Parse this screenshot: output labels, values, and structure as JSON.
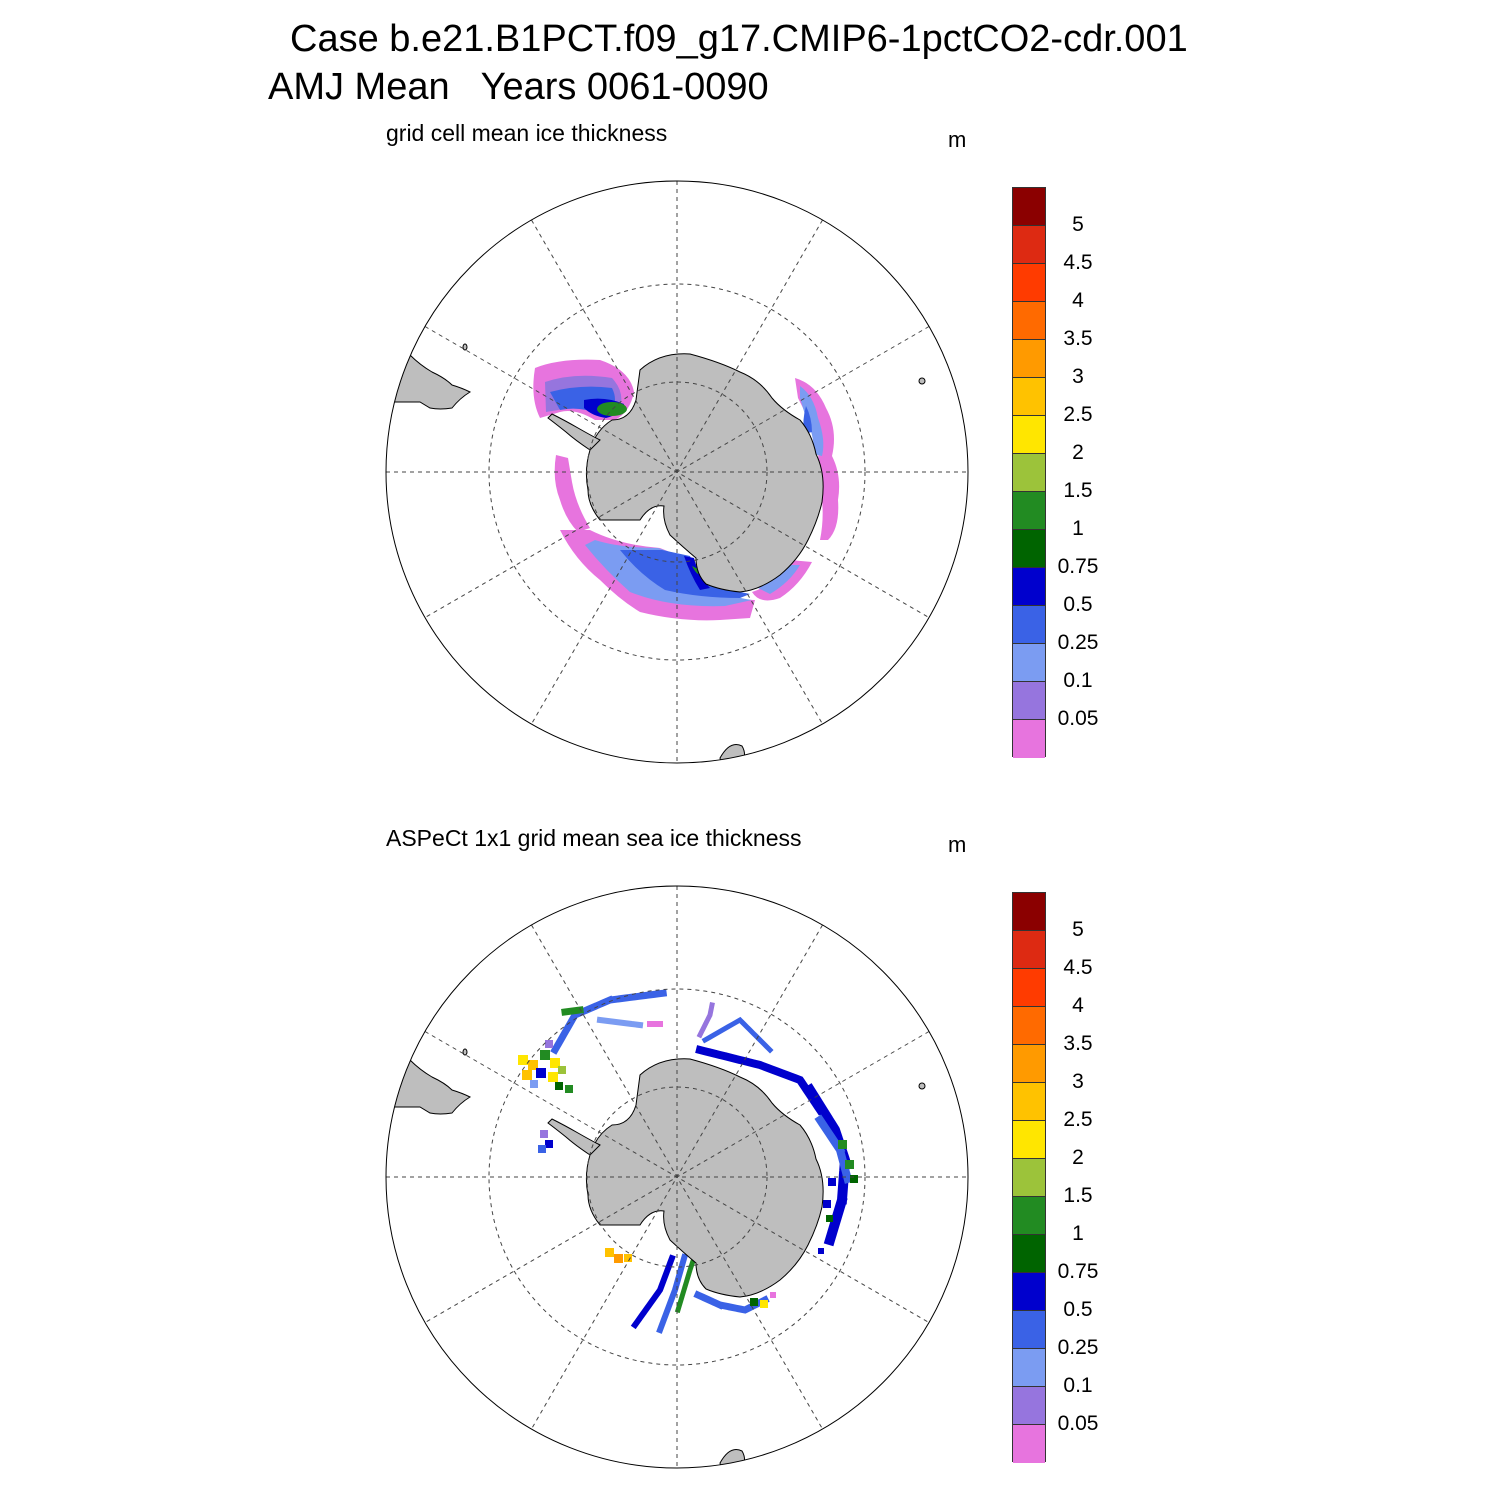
{
  "title_line1": "Case b.e21.B1PCT.f09_g17.CMIP6-1pctCO2-cdr.001",
  "title_line2": "AMJ Mean   Years 0061-0090",
  "colorbar": {
    "levels": [
      "5",
      "4.5",
      "4",
      "3.5",
      "3",
      "2.5",
      "2",
      "1.5",
      "1",
      "0.75",
      "0.5",
      "0.25",
      "0.1",
      "0.05"
    ],
    "colors": [
      "#8b0000",
      "#dd2a12",
      "#ff3b00",
      "#ff6a00",
      "#ff9a00",
      "#ffc200",
      "#ffe600",
      "#9cc33a",
      "#228b22",
      "#006400",
      "#0000cd",
      "#3a62e6",
      "#7b9cf2",
      "#9675de",
      "#e774de"
    ]
  },
  "panels": [
    {
      "id": "top",
      "title": "grid cell mean ice thickness",
      "units": "m"
    },
    {
      "id": "bottom",
      "title": "ASPeCt 1x1 grid mean sea ice thickness",
      "units": "m"
    }
  ],
  "map_colors": {
    "land": "#bebebe",
    "coast": "#000000",
    "grid": "#444444"
  }
}
